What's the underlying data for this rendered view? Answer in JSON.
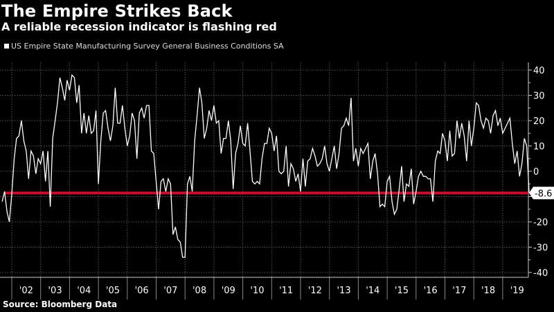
{
  "chart_data": {
    "type": "line",
    "title": "The Empire Strikes Back",
    "subtitle": "A reliable recession indicator is flashing red",
    "legend": [
      {
        "label": "US Empire State Manufacturing Survey General Business Conditions SA",
        "color": "#ffffff"
      }
    ],
    "legend_position": "top-left",
    "source": "Source: Bloomberg Data",
    "xlabel": "",
    "ylabel": "",
    "ylim": [
      -40,
      40
    ],
    "yticks": [
      40,
      30,
      20,
      10,
      0,
      -10,
      -20,
      -30,
      -40
    ],
    "ytick_labels": [
      "40",
      "30",
      "20",
      "10",
      "0",
      "",
      "-20",
      "-30",
      "-40"
    ],
    "y_axis_side": "right",
    "grid": true,
    "x_start": "2001-09",
    "x_tick_labels": [
      "'02",
      "'03",
      "'04",
      "'05",
      "'06",
      "'07",
      "'08",
      "'09",
      "'10",
      "'11",
      "'12",
      "'13",
      "'14",
      "'15",
      "'16",
      "'17",
      "'18",
      "'19"
    ],
    "reference_line": {
      "value": -8.6,
      "label": "-8.6",
      "color": "#c8102e"
    },
    "last_value_label": "-8.6",
    "series": [
      {
        "name": "US Empire State Manufacturing Survey General Business Conditions SA",
        "color": "#ffffff",
        "values": [
          -12,
          -8,
          -16,
          -20,
          -9,
          5,
          13,
          14,
          20,
          12,
          8,
          -3,
          8,
          6,
          -1,
          5,
          3,
          8,
          -4,
          8,
          -14,
          13,
          20,
          27,
          37,
          33,
          28,
          36,
          32,
          38,
          37,
          27,
          34,
          15,
          23,
          15,
          22,
          15,
          16,
          24,
          -5,
          12,
          23,
          24,
          17,
          12,
          18,
          33,
          19,
          19,
          26,
          17,
          10,
          14,
          23,
          20,
          5,
          23,
          25,
          21,
          26,
          26,
          8,
          7,
          -4,
          -15,
          -4,
          -3,
          -8,
          -3,
          -5,
          -25,
          -22,
          -27,
          -28,
          -34,
          -34,
          -5,
          -2,
          -8,
          12,
          22,
          33,
          27,
          13,
          17,
          24,
          20,
          26,
          19,
          20,
          7,
          13,
          13,
          20,
          12,
          -7,
          7,
          11,
          18,
          11,
          10,
          19,
          8,
          -4,
          -5,
          -4,
          -5,
          5,
          11,
          11,
          17,
          15,
          8,
          14,
          0,
          -1,
          0,
          10,
          -6,
          3,
          1,
          -4,
          -1,
          -8,
          5,
          -6,
          4,
          5,
          9,
          6,
          2,
          3,
          5,
          10,
          3,
          0,
          5,
          10,
          1,
          7,
          17,
          18,
          21,
          18,
          29,
          4,
          9,
          2,
          9,
          7,
          9,
          11,
          -3,
          4,
          7,
          -1,
          -14,
          -13,
          -14,
          -4,
          -2,
          -12,
          -17,
          -15,
          -7,
          2,
          -12,
          -5,
          -6,
          1,
          -13,
          -8,
          -2,
          0,
          -2,
          -2,
          -3,
          -3,
          -12,
          4,
          8,
          7,
          15,
          12,
          4,
          16,
          6,
          7,
          20,
          13,
          19,
          14,
          4,
          20,
          10,
          17,
          27,
          26,
          20,
          17,
          21,
          20,
          15,
          22,
          24,
          18,
          21,
          15,
          17,
          19,
          21,
          11,
          3,
          8,
          -2,
          3,
          13,
          10,
          -8.6
        ]
      }
    ]
  }
}
